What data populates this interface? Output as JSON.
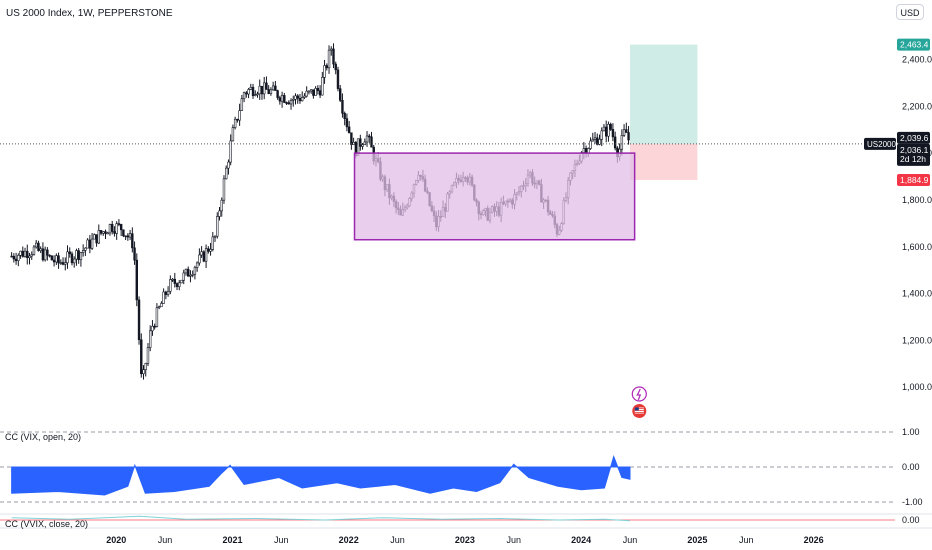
{
  "header": {
    "title": "US 2000 Index, 1W, PEPPERSTONE",
    "currency_button": "USD"
  },
  "colors": {
    "up": "#26a69a",
    "down": "#ef5350",
    "candle": "#131722",
    "box_fill": "#e1bee7",
    "box_stroke": "#9c27b0",
    "target_zone": "#cfece6",
    "stop_zone": "#fbd5d8",
    "target_label": "#26a69a",
    "stop_label": "#f23645",
    "indicator_blue": "#2962ff",
    "indicator_teal": "#7fd3d8"
  },
  "price_axis": {
    "ticks": [
      "2,400.0",
      "2,200.0",
      "2,000.0",
      "1,800.0",
      "1,600.0",
      "1,400.0",
      "1,200.0",
      "1,000.0"
    ],
    "tick_values": [
      2400,
      2200,
      2000,
      1800,
      1600,
      1400,
      1200,
      1000
    ],
    "range": [
      860,
      2560
    ]
  },
  "price_labels": {
    "target": "2,463.4",
    "last": "2,039.6",
    "symbol": "US2000",
    "current": "2,036.1",
    "countdown": "2d 12h",
    "stop": "1,884.9"
  },
  "time_axis": {
    "labels": [
      "2020",
      "Jun",
      "2021",
      "Jun",
      "2022",
      "Jun",
      "2023",
      "Jun",
      "2024",
      "Jun",
      "2025",
      "Jun",
      "2026"
    ],
    "label_years": [
      2020,
      2020.42,
      2021,
      2021.42,
      2022,
      2022.42,
      2023,
      2023.42,
      2024,
      2024.42,
      2025,
      2025.42,
      2026
    ]
  },
  "drawings": {
    "range_box": {
      "from": 2022.05,
      "to": 2024.46,
      "top": 2000,
      "bottom": 1630
    },
    "position": {
      "from": 2024.42,
      "to": 2025.0,
      "entry": 2039.6,
      "target": 2463.4,
      "stop": 1884.9
    }
  },
  "indicators": [
    {
      "name": "CC (VIX, open, 20)",
      "axis_ticks": [
        "1.00",
        "0.00",
        "-1.00"
      ],
      "tick_values": [
        1,
        0,
        -1
      ]
    },
    {
      "name": "CC (VVIX, close, 20)",
      "axis_ticks": [
        "0.00"
      ],
      "tick_values": [
        0
      ]
    }
  ],
  "chart_data": {
    "type": "candlestick",
    "title": "US 2000 Index, 1W, PEPPERSTONE",
    "ylim": [
      860,
      2560
    ],
    "price_path": [
      [
        2019.1,
        1560
      ],
      [
        2019.3,
        1590
      ],
      [
        2019.5,
        1530
      ],
      [
        2019.7,
        1580
      ],
      [
        2019.85,
        1650
      ],
      [
        2019.95,
        1690
      ],
      [
        2020.05,
        1680
      ],
      [
        2020.15,
        1610
      ],
      [
        2020.22,
        1000
      ],
      [
        2020.3,
        1250
      ],
      [
        2020.45,
        1430
      ],
      [
        2020.6,
        1480
      ],
      [
        2020.75,
        1560
      ],
      [
        2020.85,
        1640
      ],
      [
        2020.9,
        1800
      ],
      [
        2021.0,
        2080
      ],
      [
        2021.1,
        2260
      ],
      [
        2021.2,
        2280
      ],
      [
        2021.35,
        2260
      ],
      [
        2021.5,
        2230
      ],
      [
        2021.6,
        2240
      ],
      [
        2021.75,
        2270
      ],
      [
        2021.85,
        2450
      ],
      [
        2021.95,
        2190
      ],
      [
        2022.05,
        2010
      ],
      [
        2022.15,
        2080
      ],
      [
        2022.3,
        1870
      ],
      [
        2022.45,
        1720
      ],
      [
        2022.6,
        1930
      ],
      [
        2022.75,
        1690
      ],
      [
        2022.9,
        1850
      ],
      [
        2023.0,
        1930
      ],
      [
        2023.15,
        1730
      ],
      [
        2023.3,
        1760
      ],
      [
        2023.45,
        1820
      ],
      [
        2023.55,
        1920
      ],
      [
        2023.7,
        1780
      ],
      [
        2023.8,
        1660
      ],
      [
        2023.9,
        1880
      ],
      [
        2024.0,
        2010
      ],
      [
        2024.1,
        2050
      ],
      [
        2024.25,
        2110
      ],
      [
        2024.32,
        2000
      ],
      [
        2024.38,
        2100
      ],
      [
        2024.42,
        2040
      ]
    ],
    "indicator_vix": [
      [
        2019.1,
        -0.75
      ],
      [
        2019.5,
        -0.7
      ],
      [
        2019.9,
        -0.8
      ],
      [
        2020.1,
        -0.55
      ],
      [
        2020.16,
        0.05
      ],
      [
        2020.25,
        -0.75
      ],
      [
        2020.5,
        -0.7
      ],
      [
        2020.8,
        -0.55
      ],
      [
        2020.9,
        -0.2
      ],
      [
        2020.98,
        0.05
      ],
      [
        2021.1,
        -0.5
      ],
      [
        2021.4,
        -0.3
      ],
      [
        2021.6,
        -0.6
      ],
      [
        2021.9,
        -0.45
      ],
      [
        2022.1,
        -0.6
      ],
      [
        2022.4,
        -0.5
      ],
      [
        2022.7,
        -0.75
      ],
      [
        2022.9,
        -0.6
      ],
      [
        2023.1,
        -0.7
      ],
      [
        2023.3,
        -0.45
      ],
      [
        2023.42,
        0.08
      ],
      [
        2023.55,
        -0.3
      ],
      [
        2023.8,
        -0.55
      ],
      [
        2024.0,
        -0.65
      ],
      [
        2024.2,
        -0.6
      ],
      [
        2024.28,
        0.3
      ],
      [
        2024.35,
        -0.3
      ],
      [
        2024.42,
        -0.35
      ]
    ],
    "indicator_vvix": [
      [
        2019.1,
        0.15
      ],
      [
        2019.6,
        0.05
      ],
      [
        2020.2,
        0.25
      ],
      [
        2020.6,
        0.05
      ],
      [
        2021.2,
        0.1
      ],
      [
        2021.8,
        0.0
      ],
      [
        2022.3,
        0.15
      ],
      [
        2022.8,
        0.05
      ],
      [
        2023.3,
        0.1
      ],
      [
        2023.8,
        0.0
      ],
      [
        2024.2,
        0.05
      ],
      [
        2024.42,
        -0.05
      ]
    ]
  }
}
